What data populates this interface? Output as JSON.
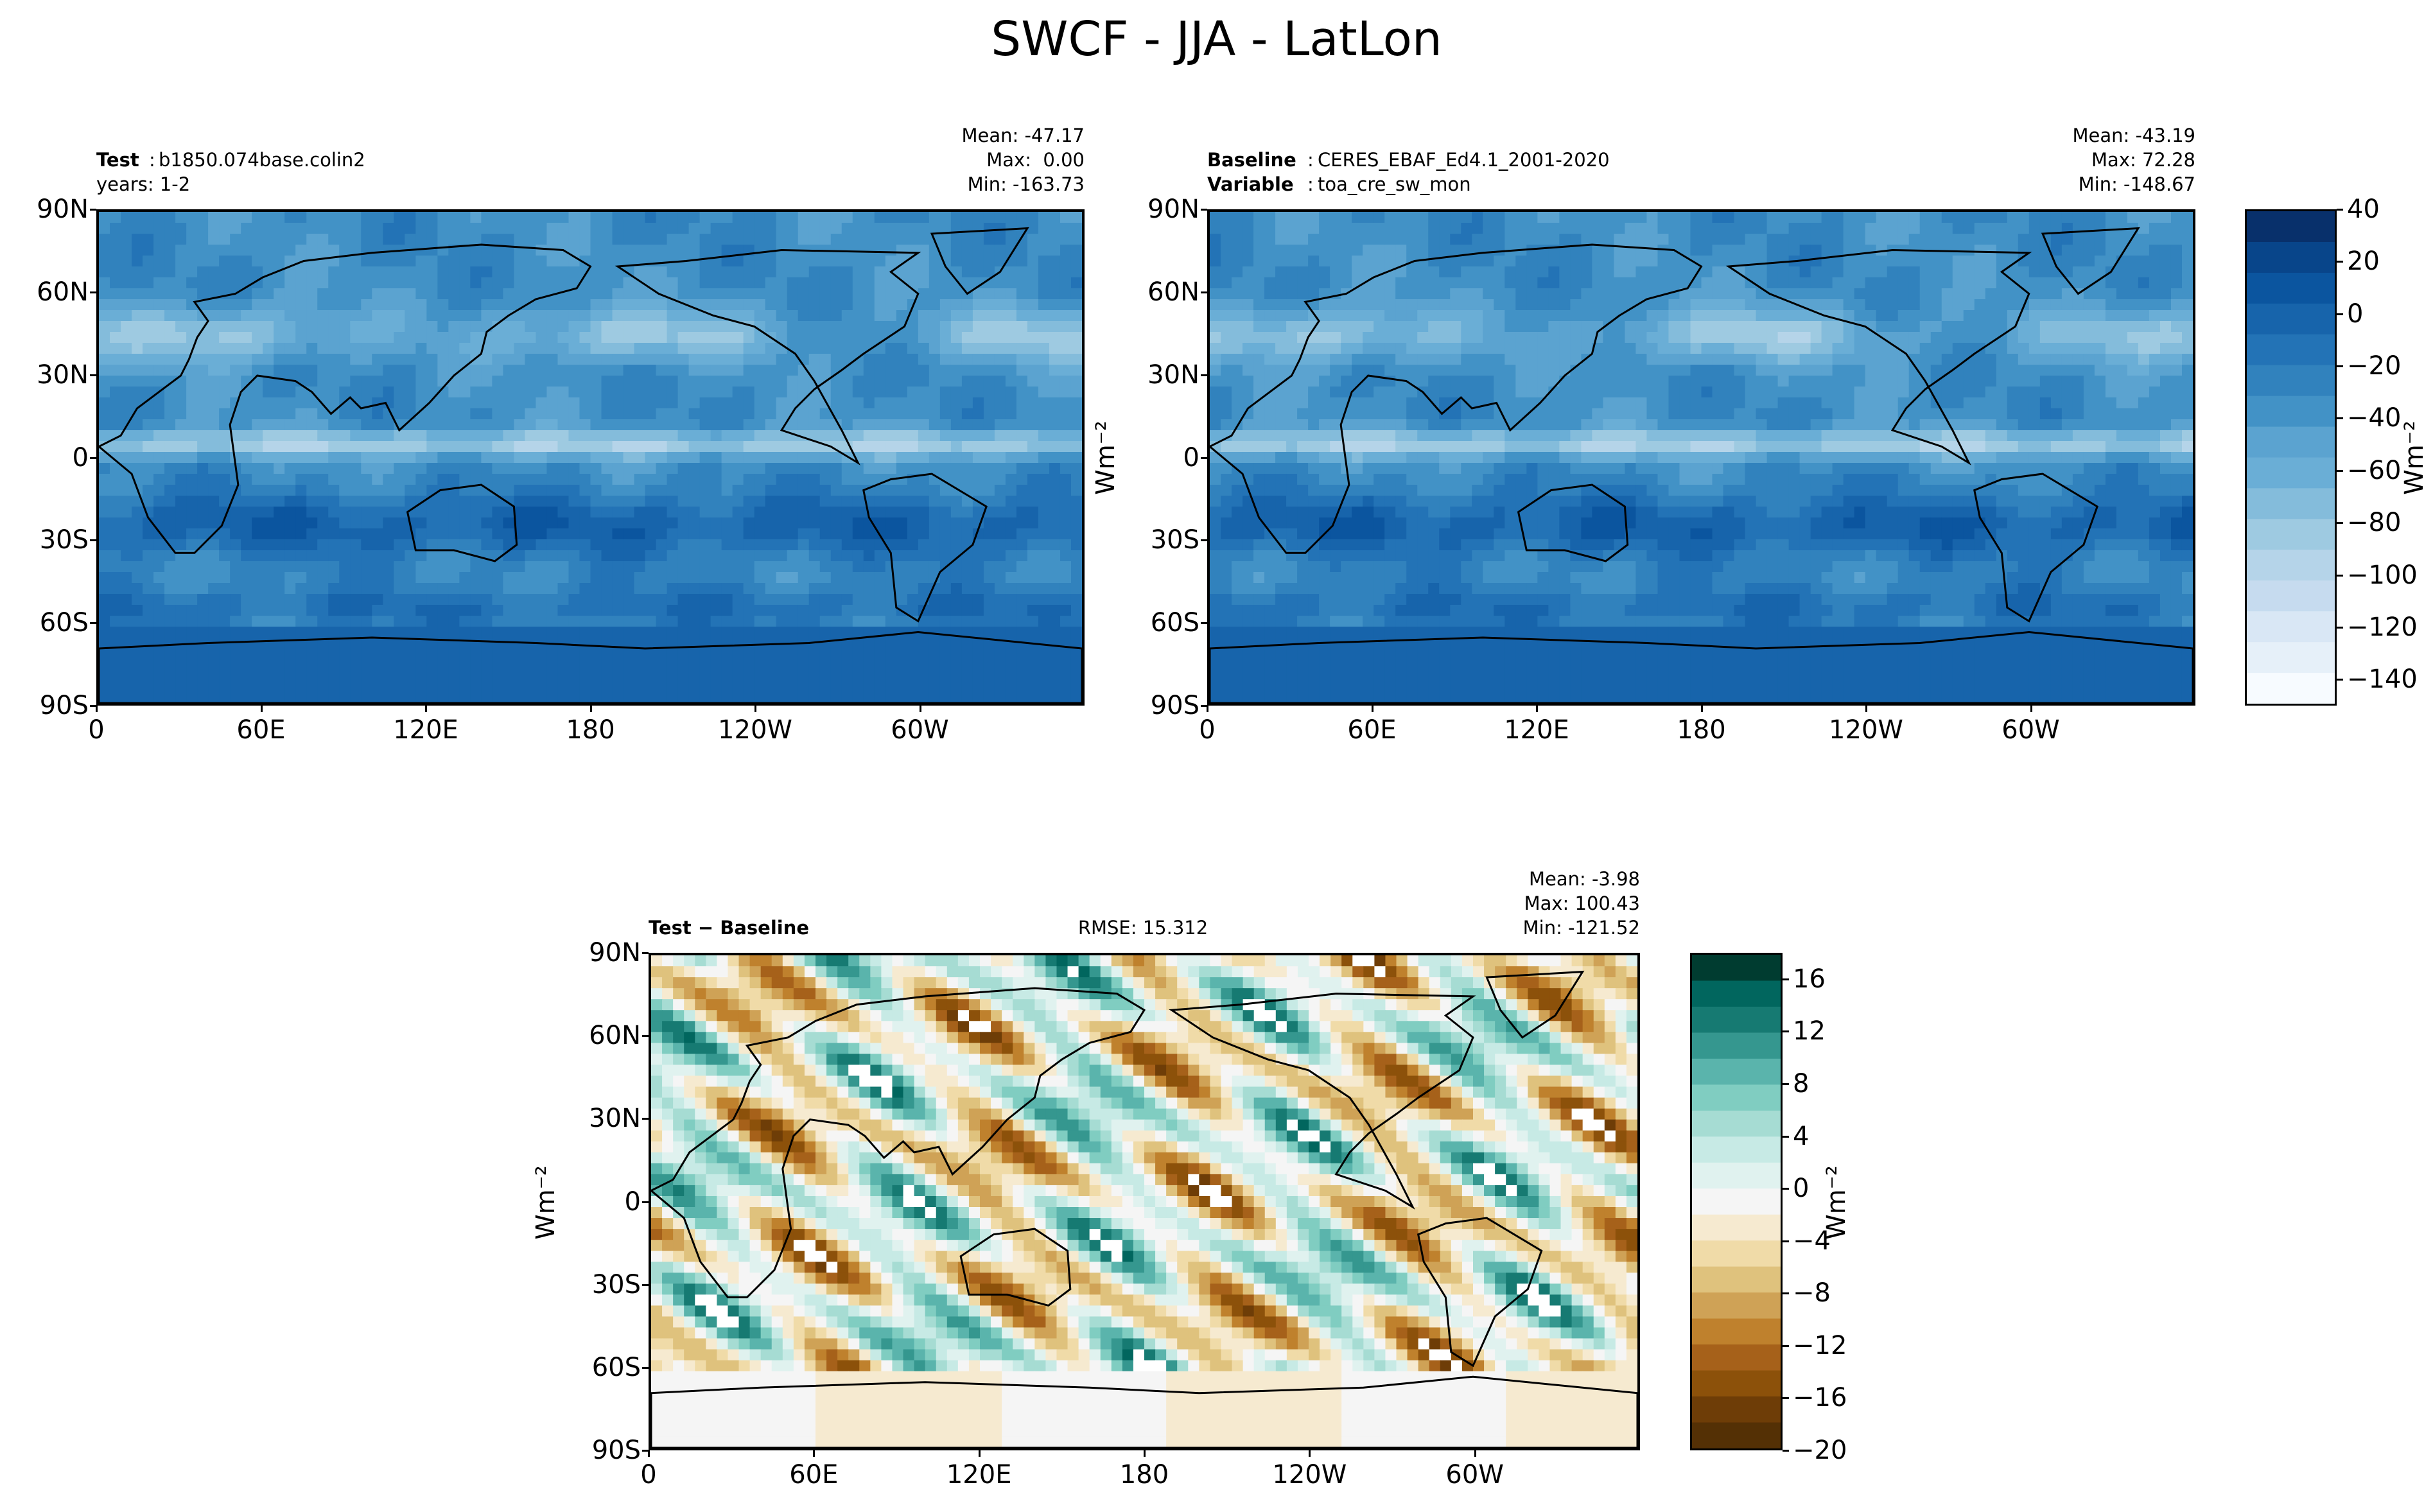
{
  "figure_title": "SWCF - JJA - LatLon",
  "chart_data": [
    {
      "type": "heatmap",
      "panel": "test",
      "header": {
        "label": "Test",
        "name": "b1850.074base.colin2",
        "line2": "years: 1-2"
      },
      "stats": {
        "mean": "Mean: -47.17",
        "max": "Max:  0.00",
        "min": "Min: -163.73"
      },
      "x_ticks": [
        "0",
        "60E",
        "120E",
        "180",
        "120W",
        "60W"
      ],
      "y_ticks": [
        "90N",
        "60N",
        "30N",
        "0",
        "30S",
        "60S",
        "90S"
      ],
      "xlim": [
        0,
        360
      ],
      "ylim": [
        -90,
        90
      ],
      "colormap": "Blues_r",
      "value_range": [
        -150,
        40
      ],
      "mean": -47.17,
      "max": 0.0,
      "min": -163.73
    },
    {
      "type": "heatmap",
      "panel": "baseline",
      "header": {
        "label": "Baseline",
        "name": "CERES_EBAF_Ed4.1_2001-2020",
        "label2": "Variable",
        "name2": "toa_cre_sw_mon"
      },
      "stats": {
        "mean": "Mean: -43.19",
        "max": "Max: 72.28",
        "min": "Min: -148.67"
      },
      "x_ticks": [
        "0",
        "60E",
        "120E",
        "180",
        "120W",
        "60W"
      ],
      "y_ticks": [
        "90N",
        "60N",
        "30N",
        "0",
        "30S",
        "60S",
        "90S"
      ],
      "xlim": [
        0,
        360
      ],
      "ylim": [
        -90,
        90
      ],
      "colormap": "Blues_r",
      "value_range": [
        -150,
        40
      ],
      "mean": -43.19,
      "max": 72.28,
      "min": -148.67
    },
    {
      "type": "heatmap",
      "panel": "difference",
      "header": {
        "label": "Test − Baseline",
        "rmse": "RMSE: 15.312"
      },
      "stats": {
        "mean": "Mean: -3.98",
        "max": "Max: 100.43",
        "min": "Min: -121.52"
      },
      "x_ticks": [
        "0",
        "60E",
        "120E",
        "180",
        "120W",
        "60W"
      ],
      "y_ticks": [
        "90N",
        "60N",
        "30N",
        "0",
        "30S",
        "60S",
        "90S"
      ],
      "xlim": [
        0,
        360
      ],
      "ylim": [
        -90,
        90
      ],
      "colormap": "BrBG",
      "value_range": [
        -20,
        18
      ],
      "mean": -3.98,
      "max": 100.43,
      "min": -121.52
    }
  ],
  "colorbars": {
    "top": {
      "unit": "Wm⁻²",
      "ticks": [
        "40",
        "20",
        "0",
        "−20",
        "−40",
        "−60",
        "−80",
        "−100",
        "−120",
        "−140"
      ],
      "values": [
        40,
        20,
        0,
        -20,
        -40,
        -60,
        -80,
        -100,
        -120,
        -140
      ],
      "range": [
        -150,
        40
      ],
      "colors": [
        "#08306b",
        "#08458a",
        "#0b559f",
        "#1764ab",
        "#2373b6",
        "#3182bd",
        "#4292c6",
        "#5ba3d0",
        "#6aaed6",
        "#84bcdb",
        "#9ecae1",
        "#b5d4e9",
        "#c6dbef",
        "#d9e7f5",
        "#e6f0f9",
        "#f7fbff"
      ]
    },
    "bottom": {
      "unit": "Wm⁻²",
      "ticks": [
        "16",
        "12",
        "8",
        "4",
        "0",
        "−4",
        "−8",
        "−12",
        "−16",
        "−20"
      ],
      "values": [
        16,
        12,
        8,
        4,
        0,
        -4,
        -8,
        -12,
        -16,
        -20
      ],
      "range": [
        -20,
        18
      ],
      "colors": [
        "#003c30",
        "#01665e",
        "#167a72",
        "#35978f",
        "#5ab4ac",
        "#80cdc1",
        "#a6dcd3",
        "#c7eae5",
        "#e0f2ef",
        "#f5f5f5",
        "#f6ead0",
        "#f0dba8",
        "#dfc27d",
        "#cfa256",
        "#bf812d",
        "#a6611a",
        "#8c510a",
        "#6e3d07",
        "#543005"
      ]
    }
  },
  "y_unit_label": "Wm⁻²"
}
